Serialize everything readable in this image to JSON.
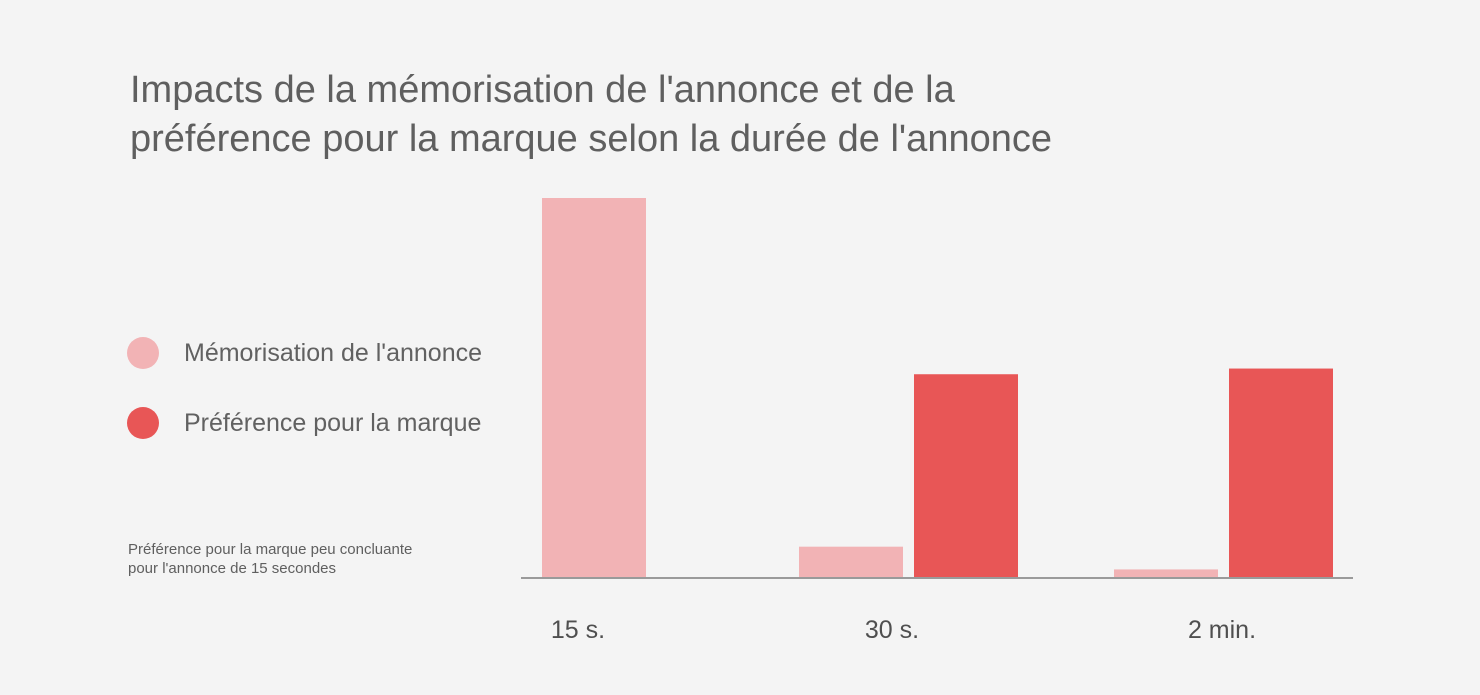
{
  "title_lines": [
    "Impacts de la mémorisation de l'annonce et de la",
    "préférence pour la marque selon la durée de l'annonce"
  ],
  "note_lines": [
    "Préférence pour la marque peu concluante",
    "pour l'annonce de 15 secondes"
  ],
  "colors": {
    "background": "#f4f4f4",
    "memorisation": "#f2b3b5",
    "preference": "#e85656",
    "axis": "#9a9a9a"
  },
  "chart_data": {
    "type": "bar",
    "categories": [
      "15 s.",
      "30 s.",
      "2 min."
    ],
    "series": [
      {
        "name": "Mémorisation de l'annonce",
        "color": "#f2b3b5",
        "values": [
          100,
          8,
          2
        ]
      },
      {
        "name": "Préférence pour la marque",
        "color": "#e85656",
        "values": [
          null,
          53.5,
          55
        ]
      }
    ],
    "title": "Impacts de la mémorisation de l'annonce et de la préférence pour la marque selon la durée de l'annonce",
    "xlabel": "",
    "ylabel": "",
    "ylim": [
      0,
      100
    ],
    "grid": false,
    "y_axis_visible": false,
    "legend_position": "left"
  }
}
